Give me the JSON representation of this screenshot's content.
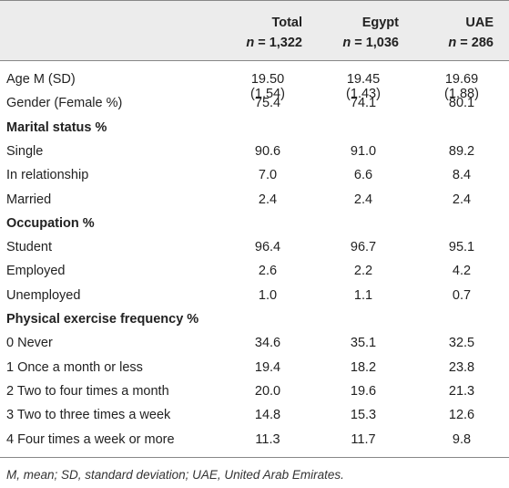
{
  "header": {
    "columns": [
      {
        "title": "Total",
        "n_label": "n",
        "n_value": "= 1,322"
      },
      {
        "title": "Egypt",
        "n_label": "n",
        "n_value": "= 1,036"
      },
      {
        "title": "UAE",
        "n_label": "n",
        "n_value": "= 286"
      }
    ]
  },
  "rows": [
    {
      "label": "Age M (SD)",
      "total": "19.50 (1.54)",
      "egypt": "19.45 (1.43)",
      "uae": "19.69 (1.88)"
    },
    {
      "label": "Gender (Female %)",
      "total": "75.4",
      "egypt": "74.1",
      "uae": "80.1"
    },
    {
      "label": "Marital status %",
      "total": "",
      "egypt": "",
      "uae": ""
    },
    {
      "label": "Single",
      "total": "90.6",
      "egypt": "91.0",
      "uae": "89.2"
    },
    {
      "label": "In relationship",
      "total": "7.0",
      "egypt": "6.6",
      "uae": "8.4"
    },
    {
      "label": "Married",
      "total": "2.4",
      "egypt": "2.4",
      "uae": "2.4"
    },
    {
      "label": "Occupation %",
      "total": "",
      "egypt": "",
      "uae": ""
    },
    {
      "label": "Student",
      "total": "96.4",
      "egypt": "96.7",
      "uae": "95.1"
    },
    {
      "label": "Employed",
      "total": "2.6",
      "egypt": "2.2",
      "uae": "4.2"
    },
    {
      "label": "Unemployed",
      "total": "1.0",
      "egypt": "1.1",
      "uae": "0.7"
    },
    {
      "label": "Physical exercise frequency %",
      "total": "",
      "egypt": "",
      "uae": ""
    },
    {
      "label": "0 Never",
      "total": "34.6",
      "egypt": "35.1",
      "uae": "32.5"
    },
    {
      "label": "1 Once a month or less",
      "total": "19.4",
      "egypt": "18.2",
      "uae": "23.8"
    },
    {
      "label": "2 Two to four times a month",
      "total": "20.0",
      "egypt": "19.6",
      "uae": "21.3"
    },
    {
      "label": "3 Two to three times a week",
      "total": "14.8",
      "egypt": "15.3",
      "uae": "12.6"
    },
    {
      "label": "4 Four times a week or more",
      "total": "11.3",
      "egypt": "11.7",
      "uae": "9.8"
    }
  ],
  "footnote": "M, mean; SD, standard deviation; UAE, United Arab Emirates."
}
